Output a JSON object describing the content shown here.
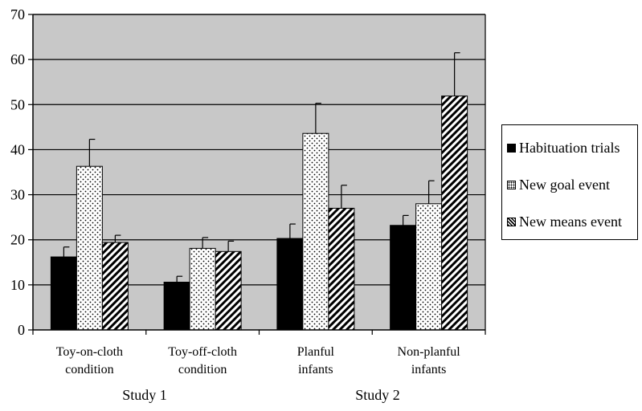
{
  "chart_data": {
    "type": "bar",
    "categories": [
      [
        "Toy-on-cloth",
        "condition"
      ],
      [
        "Toy-off-cloth",
        "condition"
      ],
      [
        "Planful",
        "infants"
      ],
      [
        "Non-planful",
        "infants"
      ]
    ],
    "series": [
      {
        "name": "Habituation trials",
        "values": [
          16.2,
          10.6,
          20.3,
          23.2
        ],
        "errors": [
          2.2,
          1.3,
          3.2,
          2.2
        ],
        "pattern": "solid"
      },
      {
        "name": "New goal event",
        "values": [
          36.3,
          18.1,
          43.6,
          28.0
        ],
        "errors": [
          6.0,
          2.4,
          6.7,
          5.1
        ],
        "pattern": "dots"
      },
      {
        "name": "New means event",
        "values": [
          19.4,
          17.4,
          27.0,
          51.9
        ],
        "errors": [
          1.6,
          2.3,
          5.1,
          9.6
        ],
        "pattern": "hatch"
      }
    ],
    "ylim": [
      0,
      70
    ],
    "yticks": [
      0,
      10,
      20,
      30,
      40,
      50,
      60,
      70
    ],
    "grid": true,
    "background": "#c8c8c8",
    "legend_position": "right",
    "groups": [
      {
        "label": "Study 1",
        "categories": [
          0,
          1
        ]
      },
      {
        "label": "Study 2",
        "categories": [
          2,
          3
        ]
      }
    ]
  }
}
